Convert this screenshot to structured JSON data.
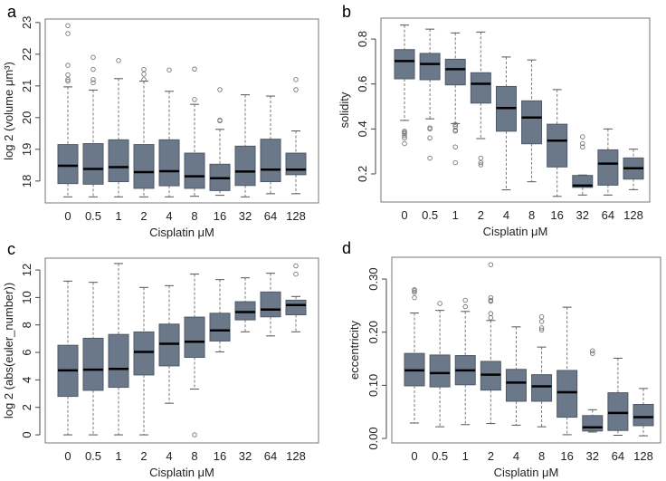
{
  "chart_data": [
    {
      "panel_label": "a",
      "type": "box",
      "xlabel": "Cisplatin μM",
      "ylabel": "log 2 (volume μm³)",
      "ylim": [
        17.31,
        23.11
      ],
      "y_ticks": [
        18,
        19,
        20,
        21,
        22,
        23
      ],
      "y_tick_labels": [
        "18",
        "19",
        "20",
        "21",
        "22",
        "23"
      ],
      "categories": [
        "0",
        "0.5",
        "1",
        "2",
        "4",
        "8",
        "16",
        "32",
        "64",
        "128"
      ],
      "boxes": [
        {
          "low": 17.5,
          "q1": 17.92,
          "median": 18.48,
          "q3": 19.15,
          "high": 20.97,
          "outliers": [
            21.15,
            21.2,
            21.35,
            21.65,
            22.65,
            22.9
          ]
        },
        {
          "low": 17.5,
          "q1": 17.9,
          "median": 18.38,
          "q3": 19.18,
          "high": 20.87,
          "outliers": [
            21.1,
            21.2,
            21.52,
            21.9
          ]
        },
        {
          "low": 17.5,
          "q1": 17.98,
          "median": 18.44,
          "q3": 19.3,
          "high": 21.23,
          "outliers": [
            21.8
          ]
        },
        {
          "low": 17.5,
          "q1": 17.77,
          "median": 18.28,
          "q3": 19.15,
          "high": 21.15,
          "outliers": [
            21.2,
            21.37,
            21.52
          ]
        },
        {
          "low": 17.5,
          "q1": 17.85,
          "median": 18.31,
          "q3": 19.3,
          "high": 20.83,
          "outliers": [
            21.5
          ]
        },
        {
          "low": 17.52,
          "q1": 17.77,
          "median": 18.15,
          "q3": 18.88,
          "high": 20.42,
          "outliers": [
            20.57,
            21.53
          ]
        },
        {
          "low": 17.55,
          "q1": 17.7,
          "median": 18.09,
          "q3": 18.53,
          "high": 19.63,
          "outliers": [
            19.9,
            19.92,
            20.88
          ]
        },
        {
          "low": 17.5,
          "q1": 17.86,
          "median": 18.3,
          "q3": 19.1,
          "high": 20.72,
          "outliers": []
        },
        {
          "low": 17.6,
          "q1": 17.98,
          "median": 18.36,
          "q3": 19.32,
          "high": 20.68,
          "outliers": []
        },
        {
          "low": 17.6,
          "q1": 18.2,
          "median": 18.36,
          "q3": 18.88,
          "high": 19.58,
          "outliers": [
            20.88,
            21.2
          ]
        }
      ]
    },
    {
      "panel_label": "b",
      "type": "box",
      "xlabel": "Cisplatin μM",
      "ylabel": "solidity",
      "ylim": [
        0.075,
        0.893
      ],
      "y_ticks": [
        0.2,
        0.4,
        0.6,
        0.8
      ],
      "y_tick_labels": [
        "0.2",
        "0.4",
        "0.6",
        "0.8"
      ],
      "categories": [
        "0",
        "0.5",
        "1",
        "2",
        "4",
        "8",
        "16",
        "32",
        "64",
        "128"
      ],
      "boxes": [
        {
          "low": 0.438,
          "q1": 0.623,
          "median": 0.702,
          "q3": 0.753,
          "high": 0.862,
          "outliers": [
            0.39,
            0.385,
            0.38,
            0.37,
            0.36,
            0.335
          ]
        },
        {
          "low": 0.445,
          "q1": 0.619,
          "median": 0.689,
          "q3": 0.736,
          "high": 0.844,
          "outliers": [
            0.405,
            0.4,
            0.36,
            0.27
          ]
        },
        {
          "low": 0.424,
          "q1": 0.596,
          "median": 0.666,
          "q3": 0.71,
          "high": 0.827,
          "outliers": [
            0.42,
            0.41,
            0.395,
            0.39,
            0.32,
            0.25
          ]
        },
        {
          "low": 0.357,
          "q1": 0.515,
          "median": 0.601,
          "q3": 0.65,
          "high": 0.831,
          "outliers": [
            0.27,
            0.25,
            0.24
          ]
        },
        {
          "low": 0.129,
          "q1": 0.39,
          "median": 0.493,
          "q3": 0.589,
          "high": 0.72,
          "outliers": []
        },
        {
          "low": 0.165,
          "q1": 0.334,
          "median": 0.451,
          "q3": 0.525,
          "high": 0.707,
          "outliers": []
        },
        {
          "low": 0.1,
          "q1": 0.231,
          "median": 0.348,
          "q3": 0.421,
          "high": 0.575,
          "outliers": []
        },
        {
          "low": 0.106,
          "q1": 0.14,
          "median": 0.148,
          "q3": 0.193,
          "high": 0.195,
          "outliers": [
            0.365,
            0.335,
            0.32
          ]
        },
        {
          "low": 0.106,
          "q1": 0.15,
          "median": 0.246,
          "q3": 0.307,
          "high": 0.4,
          "outliers": []
        },
        {
          "low": 0.13,
          "q1": 0.177,
          "median": 0.225,
          "q3": 0.271,
          "high": 0.31,
          "outliers": []
        }
      ]
    },
    {
      "panel_label": "c",
      "type": "box",
      "xlabel": "Cisplatin μM",
      "ylabel": "log 2 (abs(euler_number))",
      "ylim": [
        -0.59,
        12.86
      ],
      "y_ticks": [
        0,
        2,
        4,
        6,
        8,
        10,
        12
      ],
      "y_tick_labels": [
        "0",
        "2",
        "4",
        "6",
        "8",
        "10",
        "12"
      ],
      "categories": [
        "0",
        "0.5",
        "1",
        "2",
        "4",
        "8",
        "16",
        "32",
        "64",
        "128"
      ],
      "boxes": [
        {
          "low": 0,
          "q1": 2.8,
          "median": 4.69,
          "q3": 6.52,
          "high": 11.19,
          "outliers": []
        },
        {
          "low": 0,
          "q1": 3.24,
          "median": 4.74,
          "q3": 7.03,
          "high": 11.1,
          "outliers": []
        },
        {
          "low": 0,
          "q1": 3.46,
          "median": 4.8,
          "q3": 7.31,
          "high": 12.47,
          "outliers": []
        },
        {
          "low": 0,
          "q1": 4.36,
          "median": 6.04,
          "q3": 7.49,
          "high": 10.73,
          "outliers": []
        },
        {
          "low": 2.3,
          "q1": 5.02,
          "median": 6.63,
          "q3": 8.06,
          "high": 10.86,
          "outliers": []
        },
        {
          "low": 3.33,
          "q1": 5.64,
          "median": 6.78,
          "q3": 8.57,
          "high": 11.7,
          "outliers": [
            0
          ]
        },
        {
          "low": 6.04,
          "q1": 6.83,
          "median": 7.6,
          "q3": 8.85,
          "high": 11.3,
          "outliers": []
        },
        {
          "low": 7.5,
          "q1": 8.37,
          "median": 8.94,
          "q3": 9.69,
          "high": 11.43,
          "outliers": []
        },
        {
          "low": 7.2,
          "q1": 8.59,
          "median": 9.12,
          "q3": 10.4,
          "high": 11.76,
          "outliers": []
        },
        {
          "low": 7.5,
          "q1": 8.74,
          "median": 9.45,
          "q3": 9.8,
          "high": 10.07,
          "outliers": [
            11.7,
            12.3
          ]
        }
      ]
    },
    {
      "panel_label": "d",
      "type": "box",
      "xlabel": "Cisplatin μM",
      "ylabel": "eccentricity",
      "ylim": [
        -0.0085,
        0.341
      ],
      "y_ticks": [
        0,
        0.1,
        0.2,
        0.3
      ],
      "y_tick_labels": [
        "0.00",
        "0.10",
        "0.20",
        "0.30"
      ],
      "categories": [
        "0",
        "0.5",
        "1",
        "2",
        "4",
        "8",
        "16",
        "32",
        "64",
        "128"
      ],
      "boxes": [
        {
          "low": 0.029,
          "q1": 0.099,
          "median": 0.128,
          "q3": 0.16,
          "high": 0.236,
          "outliers": [
            0.265,
            0.275,
            0.278,
            0.28
          ]
        },
        {
          "low": 0.022,
          "q1": 0.097,
          "median": 0.123,
          "q3": 0.157,
          "high": 0.241,
          "outliers": [
            0.254
          ]
        },
        {
          "low": 0.026,
          "q1": 0.101,
          "median": 0.128,
          "q3": 0.156,
          "high": 0.239,
          "outliers": [
            0.248,
            0.26
          ]
        },
        {
          "low": 0.028,
          "q1": 0.091,
          "median": 0.12,
          "q3": 0.145,
          "high": 0.222,
          "outliers": [
            0.227,
            0.235,
            0.258,
            0.26,
            0.265,
            0.327
          ]
        },
        {
          "low": 0.025,
          "q1": 0.07,
          "median": 0.105,
          "q3": 0.13,
          "high": 0.21,
          "outliers": []
        },
        {
          "low": 0.022,
          "q1": 0.07,
          "median": 0.098,
          "q3": 0.12,
          "high": 0.172,
          "outliers": [
            0.204,
            0.208,
            0.22,
            0.229
          ]
        },
        {
          "low": 0.007,
          "q1": 0.04,
          "median": 0.087,
          "q3": 0.128,
          "high": 0.247,
          "outliers": []
        },
        {
          "low": 0.012,
          "q1": 0.014,
          "median": 0.021,
          "q3": 0.043,
          "high": 0.054,
          "outliers": [
            0.16,
            0.165
          ]
        },
        {
          "low": 0.006,
          "q1": 0.015,
          "median": 0.048,
          "q3": 0.086,
          "high": 0.151,
          "outliers": []
        },
        {
          "low": 0.005,
          "q1": 0.024,
          "median": 0.04,
          "q3": 0.064,
          "high": 0.094,
          "outliers": []
        }
      ]
    }
  ],
  "colors": {
    "box_fill": "#6b7889",
    "box_stroke": "#4f5a66",
    "median": "#000000",
    "whisker": "#7a7a7a",
    "frame": "#777777"
  }
}
